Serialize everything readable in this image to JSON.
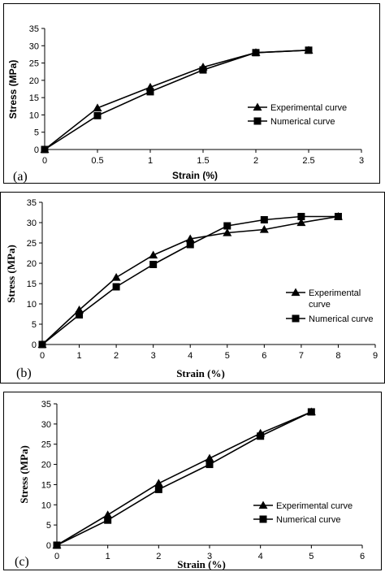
{
  "chart_data": [
    {
      "panel_label": "(a)",
      "type": "line",
      "xlabel": "Strain (%)",
      "ylabel": "Stress (MPa)",
      "xlim": [
        0,
        3
      ],
      "ylim": [
        0,
        35
      ],
      "xticks": [
        "0",
        "0.5",
        "1",
        "1.5",
        "2",
        "2.5",
        "3"
      ],
      "yticks": [
        "0",
        "5",
        "10",
        "15",
        "20",
        "25",
        "30",
        "35"
      ],
      "grid": false,
      "legend_position": "right",
      "series": [
        {
          "name": "Experimental curve",
          "marker": "triangle",
          "x": [
            0,
            0.5,
            1,
            1.5,
            2,
            2.5
          ],
          "y": [
            0,
            12,
            18,
            23.8,
            28,
            28.7
          ]
        },
        {
          "name": "Numerical curve",
          "marker": "square",
          "x": [
            0,
            0.5,
            1,
            1.5,
            2,
            2.5
          ],
          "y": [
            0,
            9.8,
            16.7,
            23,
            28,
            28.7
          ]
        }
      ]
    },
    {
      "panel_label": "(b)",
      "type": "line",
      "xlabel": "Strain (%)",
      "ylabel": "Stress (MPa)",
      "xlim": [
        0,
        9
      ],
      "ylim": [
        0,
        35
      ],
      "xticks": [
        "0",
        "1",
        "2",
        "3",
        "4",
        "5",
        "6",
        "7",
        "8",
        "9"
      ],
      "yticks": [
        "0",
        "5",
        "10",
        "15",
        "20",
        "25",
        "30",
        "35"
      ],
      "grid": false,
      "legend_position": "right",
      "series": [
        {
          "name": "Experimental curve",
          "marker": "triangle",
          "x": [
            0,
            1,
            2,
            3,
            4,
            5,
            6,
            7,
            8
          ],
          "y": [
            0,
            8.5,
            16.5,
            22,
            26,
            27.5,
            28.3,
            30,
            31.5
          ]
        },
        {
          "name": "Numerical curve",
          "marker": "square",
          "x": [
            0,
            1,
            2,
            3,
            4,
            5,
            6,
            7,
            8
          ],
          "y": [
            0,
            7.3,
            14.2,
            19.7,
            24.6,
            29.2,
            30.7,
            31.5,
            31.5
          ]
        }
      ]
    },
    {
      "panel_label": "(c)",
      "type": "line",
      "xlabel": "Strain (%)",
      "ylabel": "Stress (MPa)",
      "xlim": [
        0,
        6
      ],
      "ylim": [
        0,
        35
      ],
      "xticks": [
        "0",
        "1",
        "2",
        "3",
        "4",
        "5",
        "6"
      ],
      "yticks": [
        "0",
        "5",
        "10",
        "15",
        "20",
        "25",
        "30",
        "35"
      ],
      "grid": false,
      "legend_position": "bottom-right",
      "series": [
        {
          "name": "Experimental curve",
          "marker": "triangle",
          "x": [
            0,
            1,
            2,
            3,
            4,
            5
          ],
          "y": [
            0,
            7.5,
            15.3,
            21.5,
            27.7,
            33
          ]
        },
        {
          "name": "Numerical curve",
          "marker": "square",
          "x": [
            0,
            1,
            2,
            3,
            4,
            5
          ],
          "y": [
            0,
            6.2,
            13.8,
            20,
            27,
            33
          ]
        }
      ]
    }
  ]
}
